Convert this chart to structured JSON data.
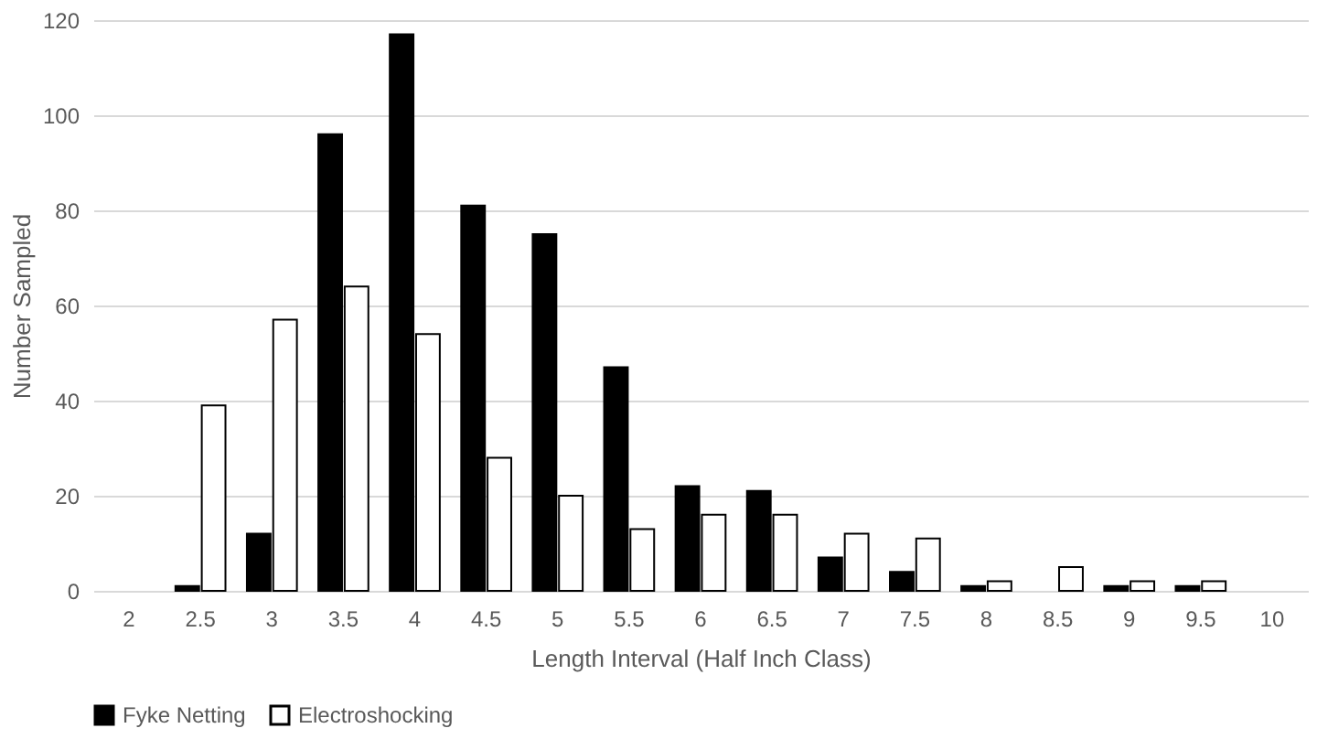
{
  "chart_data": {
    "type": "bar",
    "xlabel": "Length Interval (Half Inch Class)",
    "ylabel": "Number Sampled",
    "categories": [
      "2",
      "2.5",
      "3",
      "3.5",
      "4",
      "4.5",
      "5",
      "5.5",
      "6",
      "6.5",
      "7",
      "7.5",
      "8",
      "8.5",
      "9",
      "9.5",
      "10"
    ],
    "series": [
      {
        "name": "Fyke Netting",
        "color": "#000000",
        "values": [
          0,
          1,
          12,
          96,
          117,
          81,
          75,
          47,
          22,
          21,
          7,
          4,
          1,
          0,
          1,
          1,
          0
        ]
      },
      {
        "name": "Electroshocking",
        "color": "#ffffff",
        "values": [
          0,
          39,
          57,
          64,
          54,
          28,
          20,
          13,
          16,
          16,
          12,
          11,
          2,
          5,
          2,
          2,
          0
        ]
      }
    ],
    "ylim": [
      0,
      120
    ],
    "yticks": [
      0,
      20,
      40,
      60,
      80,
      100,
      120
    ],
    "grid": "y",
    "legend": "bottom"
  }
}
